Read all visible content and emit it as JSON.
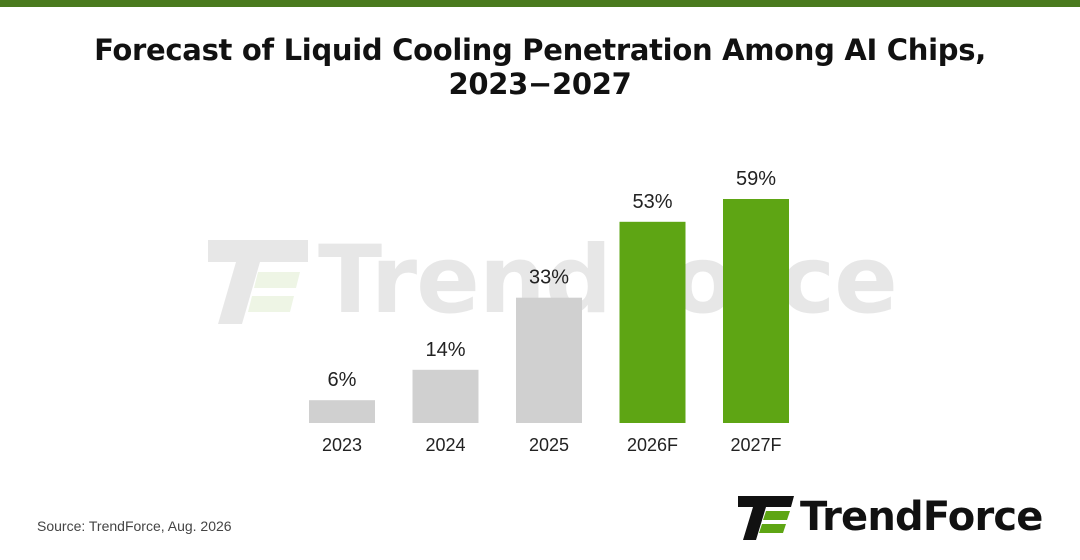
{
  "title": "Forecast of Liquid Cooling Penetration Among AI Chips, 2023−2027",
  "source": "Source: TrendForce, Aug. 2026",
  "watermark": {
    "text": "TrendForce"
  },
  "brand": {
    "name": "TrendForce",
    "icon": "trendforce-logo-icon"
  },
  "colors": {
    "accent": "#4a7a1e",
    "actual_bar": "#d0d0d0",
    "forecast_bar": "#5ea514",
    "label_text": "#222222"
  },
  "chart_data": {
    "type": "bar",
    "title": "Forecast of Liquid Cooling Penetration Among AI Chips, 2023−2027",
    "xlabel": "",
    "ylabel": "",
    "grid": false,
    "legend": "none",
    "categories": [
      "2023",
      "2024",
      "2025",
      "2026F",
      "2027F"
    ],
    "values": [
      6,
      14,
      33,
      53,
      59
    ],
    "value_labels": [
      "6%",
      "14%",
      "33%",
      "53%",
      "59%"
    ],
    "forecast": [
      false,
      false,
      false,
      true,
      true
    ],
    "ylim": [
      0,
      59
    ]
  }
}
